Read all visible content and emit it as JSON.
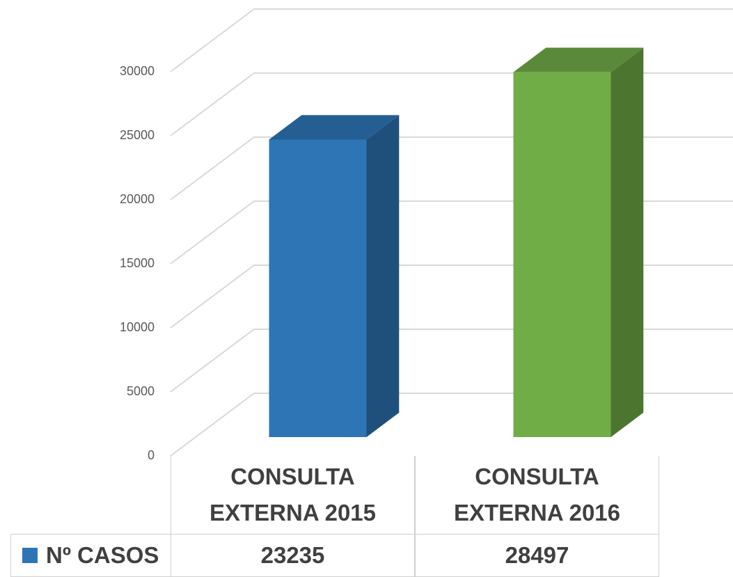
{
  "chart_data": {
    "type": "bar3d",
    "categories": [
      "CONSULTA EXTERNA 2015",
      "CONSULTA EXTERNA 2016"
    ],
    "series": [
      {
        "name": "Nº CASOS",
        "colors": [
          "#2e75b6",
          "#70ad47"
        ],
        "values": [
          23235,
          28497
        ]
      }
    ],
    "ylim": [
      0,
      30000
    ],
    "yticks": [
      0,
      5000,
      10000,
      15000,
      20000,
      25000,
      30000
    ],
    "grid": true
  }
}
